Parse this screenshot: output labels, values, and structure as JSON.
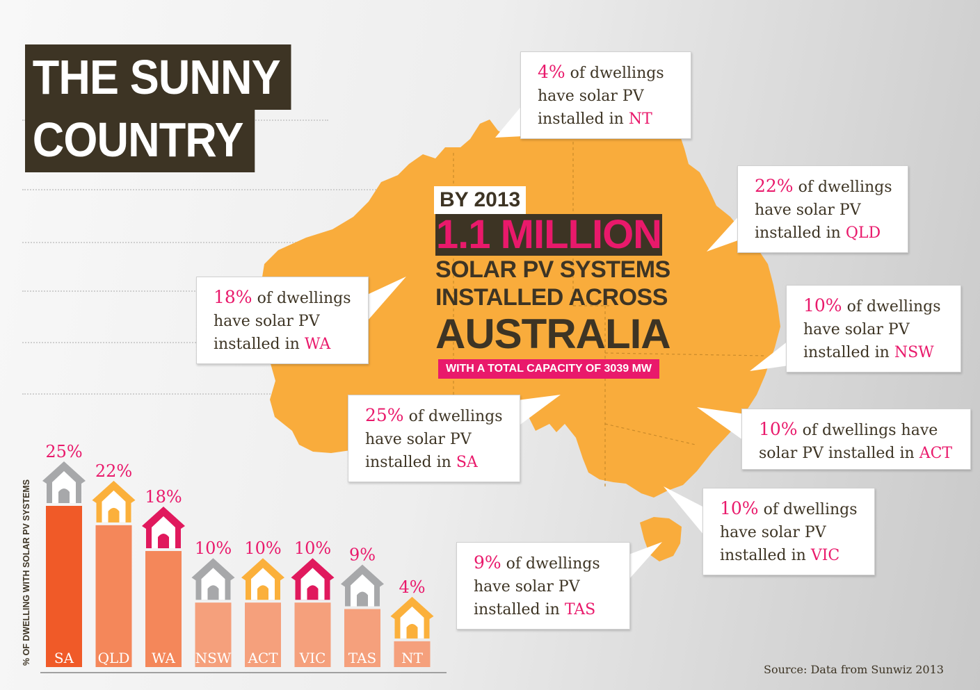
{
  "title": {
    "line1": "THE SUNNY",
    "line2": "COUNTRY"
  },
  "headline": {
    "by_year": "BY 2013",
    "amount": "1.1 MILLION",
    "line1": "SOLAR PV SYSTEMS",
    "line2": "INSTALLED ACROSS",
    "line3": "AUSTRALIA",
    "capacity": "WITH A TOTAL CAPACITY OF 3039 MW"
  },
  "callouts": {
    "nt": {
      "pct": "4%",
      "t1": " of dwellings",
      "t2": "have solar PV",
      "t3": "installed in ",
      "state": "NT"
    },
    "qld": {
      "pct": "22%",
      "t1": " of dwellings",
      "t2": "have solar PV",
      "t3": "installed in ",
      "state": "QLD"
    },
    "wa": {
      "pct": "18%",
      "t1": " of dwellings",
      "t2": "have solar PV",
      "t3": "installed in ",
      "state": "WA"
    },
    "nsw": {
      "pct": "10%",
      "t1": " of dwellings",
      "t2": "have solar PV",
      "t3": "installed in ",
      "state": "NSW"
    },
    "act": {
      "pct": "10%",
      "t1": " of dwellings have",
      "t2": "solar PV installed in ",
      "state": "ACT"
    },
    "sa": {
      "pct": "25%",
      "t1": " of dwellings",
      "t2": "have solar PV",
      "t3": "installed in ",
      "state": "SA"
    },
    "vic": {
      "pct": "10%",
      "t1": " of dwellings",
      "t2": "have solar PV",
      "t3": "installed in ",
      "state": "VIC"
    },
    "tas": {
      "pct": "9%",
      "t1": " of dwellings",
      "t2": "have solar PV",
      "t3": "installed in ",
      "state": "TAS"
    }
  },
  "source": "Source: Data from Sunwiz 2013",
  "colors": {
    "pink": "#e9196b",
    "dark": "#3d3424",
    "map": "#f9ac3c",
    "bar_sa": "#f05a28",
    "bar_light": "#f4875a",
    "bar_lighter": "#f5a07c",
    "house_grey": "#a7a8aa",
    "house_orange": "#fbb03b",
    "house_pink": "#e0195d"
  },
  "chart_data": {
    "type": "bar",
    "ylabel": "% OF DWELLING WITH SOLAR PV SYSTEMS",
    "categories": [
      "SA",
      "QLD",
      "WA",
      "NSW",
      "ACT",
      "VIC",
      "TAS",
      "NT"
    ],
    "values": [
      25,
      22,
      18,
      10,
      10,
      10,
      9,
      4
    ],
    "value_labels": [
      "25%",
      "22%",
      "18%",
      "10%",
      "10%",
      "10%",
      "9%",
      "4%"
    ],
    "house_icon_colors": [
      "grey",
      "orange",
      "pink",
      "grey",
      "orange",
      "pink",
      "grey",
      "orange"
    ],
    "ylim": [
      0,
      25
    ]
  }
}
